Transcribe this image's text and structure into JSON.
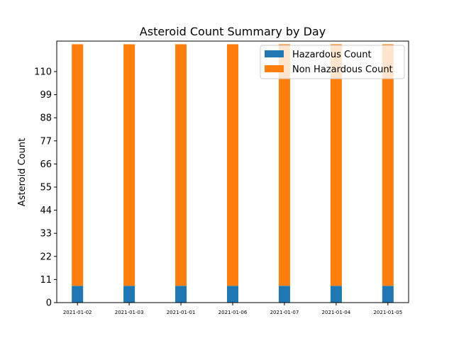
{
  "chart_data": {
    "type": "bar",
    "stacked": true,
    "title": "Asteroid Count Summary by Day",
    "xlabel": "",
    "ylabel": "Asteroid Count",
    "categories": [
      "2021-01-02",
      "2021-01-03",
      "2021-01-01",
      "2021-01-06",
      "2021-01-07",
      "2021-01-04",
      "2021-01-05"
    ],
    "series": [
      {
        "name": "Hazardous Count",
        "color": "#1f77b4",
        "values": [
          8,
          8,
          8,
          8,
          8,
          8,
          8
        ]
      },
      {
        "name": "Non Hazardous Count",
        "color": "#ff7f0e",
        "values": [
          115,
          115,
          115,
          115,
          115,
          115,
          115
        ]
      }
    ],
    "yticks": [
      0,
      11,
      22,
      33,
      44,
      55,
      66,
      77,
      88,
      99,
      110
    ],
    "ylim": [
      0,
      124.5
    ],
    "grid": false,
    "legend_position": "top-right"
  }
}
